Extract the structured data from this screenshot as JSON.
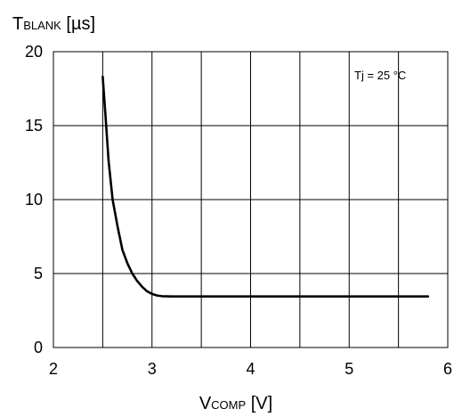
{
  "chart_data": {
    "type": "line",
    "title": "",
    "ylabel": {
      "main": "T",
      "sub": "BLANK",
      "unit": " [µs]"
    },
    "xlabel": {
      "main": "V",
      "sub": "COMP",
      "unit": " [V]"
    },
    "annotation": "Tj = 25 °C",
    "xlim": [
      2,
      6
    ],
    "ylim": [
      0,
      20
    ],
    "x_major_ticks": [
      2,
      3,
      4,
      5,
      6
    ],
    "x_minor_gridlines": [
      2.5,
      3.5,
      4.5,
      5.5
    ],
    "y_ticks": [
      0,
      5,
      10,
      15,
      20
    ],
    "grid": true,
    "series": [
      {
        "points": [
          [
            2.5,
            18.3
          ],
          [
            2.53,
            15.5
          ],
          [
            2.56,
            12.6
          ],
          [
            2.6,
            10.0
          ],
          [
            2.65,
            8.2
          ],
          [
            2.7,
            6.6
          ],
          [
            2.75,
            5.7
          ],
          [
            2.8,
            5.0
          ],
          [
            2.85,
            4.5
          ],
          [
            2.9,
            4.1
          ],
          [
            2.95,
            3.8
          ],
          [
            3.0,
            3.62
          ],
          [
            3.05,
            3.52
          ],
          [
            3.1,
            3.47
          ],
          [
            3.2,
            3.45
          ],
          [
            3.5,
            3.45
          ],
          [
            4.0,
            3.45
          ],
          [
            4.5,
            3.45
          ],
          [
            5.0,
            3.45
          ],
          [
            5.5,
            3.45
          ],
          [
            5.8,
            3.45
          ]
        ]
      }
    ]
  }
}
